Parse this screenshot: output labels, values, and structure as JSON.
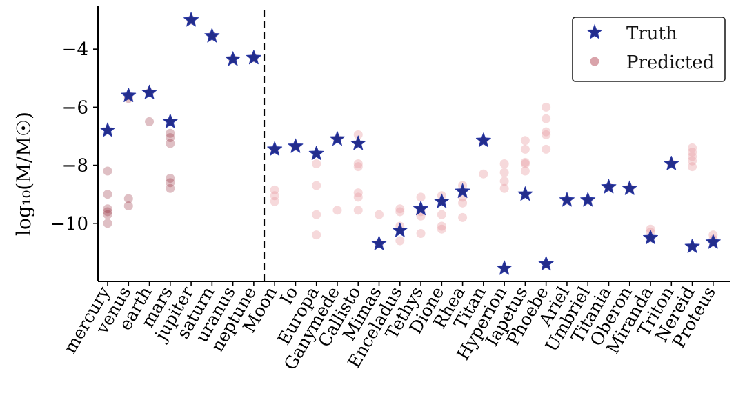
{
  "chart_data": {
    "type": "scatter",
    "title": "",
    "xlabel": "",
    "ylabel": "log₁₀(M/M☉)",
    "ylim": [
      -12.0,
      -2.5
    ],
    "yticks": [
      -4,
      -6,
      -8,
      -10
    ],
    "ytick_labels": [
      "−4",
      "−6",
      "−8",
      "−10"
    ],
    "divider_after": "neptune",
    "legend": {
      "position": "top-right",
      "truth_label": "Truth",
      "predicted_label": "Predicted"
    },
    "colors": {
      "truth_fill": "#232d8c",
      "truth_stroke": "#2b3aa6",
      "predicted_planet": "#8b1a2b",
      "predicted_moon": "#e89aa0"
    },
    "bodies": [
      {
        "name": "mercury",
        "group": "planet",
        "truth": -6.8,
        "predicted": [
          -8.2,
          -9.0,
          -9.5,
          -9.6,
          -9.7,
          -10.0
        ]
      },
      {
        "name": "venus",
        "group": "planet",
        "truth": -5.6,
        "predicted": [
          -5.6,
          -5.7,
          -9.15,
          -9.4
        ]
      },
      {
        "name": "earth",
        "group": "planet",
        "truth": -5.5,
        "predicted": [
          -5.5,
          -6.5
        ]
      },
      {
        "name": "mars",
        "group": "planet",
        "truth": -6.5,
        "predicted": [
          -6.9,
          -7.05,
          -7.25,
          -8.45,
          -8.6,
          -8.8
        ]
      },
      {
        "name": "jupiter",
        "group": "planet",
        "truth": -3.0,
        "predicted": [
          -3.0
        ]
      },
      {
        "name": "saturn",
        "group": "planet",
        "truth": -3.55,
        "predicted": [
          -3.55
        ]
      },
      {
        "name": "uranus",
        "group": "planet",
        "truth": -4.35,
        "predicted": [
          -4.35
        ]
      },
      {
        "name": "neptune",
        "group": "planet",
        "truth": -4.3,
        "predicted": [
          -4.3
        ]
      },
      {
        "name": "Moon",
        "group": "moon",
        "truth": -7.45,
        "predicted": [
          -7.45,
          -8.85,
          -9.05,
          -9.25
        ]
      },
      {
        "name": "Io",
        "group": "moon",
        "truth": -7.35,
        "predicted": [
          -7.35
        ]
      },
      {
        "name": "Europa",
        "group": "moon",
        "truth": -7.6,
        "predicted": [
          -7.95,
          -8.7,
          -9.7,
          -10.4
        ]
      },
      {
        "name": "Ganymede",
        "group": "moon",
        "truth": -7.1,
        "predicted": [
          -7.1,
          -9.55
        ]
      },
      {
        "name": "Callisto",
        "group": "moon",
        "truth": -7.25,
        "predicted": [
          -6.95,
          -7.95,
          -8.05,
          -8.95,
          -9.1,
          -9.55
        ]
      },
      {
        "name": "Mimas",
        "group": "moon",
        "truth": -10.7,
        "predicted": [
          -9.7,
          -10.7
        ]
      },
      {
        "name": "Enceladus",
        "group": "moon",
        "truth": -10.25,
        "predicted": [
          -9.5,
          -9.6,
          -10.1,
          -10.6
        ]
      },
      {
        "name": "Tethys",
        "group": "moon",
        "truth": -9.5,
        "predicted": [
          -9.1,
          -9.6,
          -9.75,
          -10.35
        ]
      },
      {
        "name": "Dione",
        "group": "moon",
        "truth": -9.25,
        "predicted": [
          -9.05,
          -9.7,
          -10.1,
          -10.2
        ]
      },
      {
        "name": "Rhea",
        "group": "moon",
        "truth": -8.9,
        "predicted": [
          -8.7,
          -9.1,
          -9.3,
          -9.8
        ]
      },
      {
        "name": "Titan",
        "group": "moon",
        "truth": -7.15,
        "predicted": [
          -7.15,
          -8.3
        ]
      },
      {
        "name": "Hyperion",
        "group": "moon",
        "truth": -11.55,
        "predicted": [
          -7.95,
          -8.25,
          -8.55,
          -8.8
        ]
      },
      {
        "name": "Iapetus",
        "group": "moon",
        "truth": -9.0,
        "predicted": [
          -7.15,
          -7.45,
          -7.9,
          -7.95,
          -8.2
        ]
      },
      {
        "name": "Phoebe",
        "group": "moon",
        "truth": -11.4,
        "predicted": [
          -6.0,
          -6.4,
          -6.85,
          -6.95,
          -7.45
        ]
      },
      {
        "name": "Ariel",
        "group": "moon",
        "truth": -9.2,
        "predicted": [
          -9.2
        ]
      },
      {
        "name": "Umbriel",
        "group": "moon",
        "truth": -9.2,
        "predicted": [
          -9.2
        ]
      },
      {
        "name": "Titania",
        "group": "moon",
        "truth": -8.75,
        "predicted": [
          -8.75
        ]
      },
      {
        "name": "Oberon",
        "group": "moon",
        "truth": -8.8,
        "predicted": [
          -8.8
        ]
      },
      {
        "name": "Miranda",
        "group": "moon",
        "truth": -10.5,
        "predicted": [
          -10.2,
          -10.3,
          -10.5
        ]
      },
      {
        "name": "Triton",
        "group": "moon",
        "truth": -7.95,
        "predicted": [
          -7.95
        ]
      },
      {
        "name": "Nereid",
        "group": "moon",
        "truth": -10.8,
        "predicted": [
          -7.4,
          -7.55,
          -7.7,
          -7.85,
          -8.05
        ]
      },
      {
        "name": "Proteus",
        "group": "moon",
        "truth": -10.65,
        "predicted": [
          -10.4,
          -10.55,
          -10.65
        ]
      }
    ]
  }
}
